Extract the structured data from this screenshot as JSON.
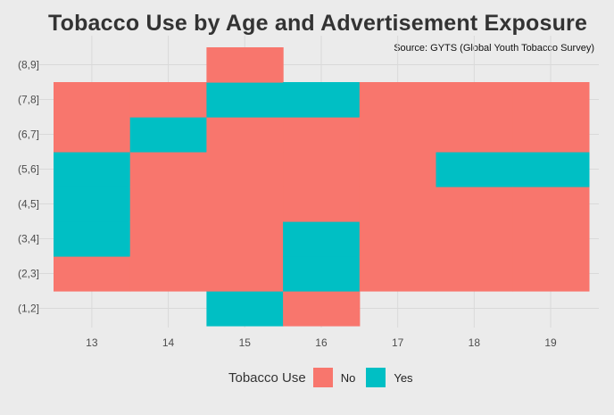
{
  "chart_data": {
    "type": "heatmap",
    "title": "Tobacco Use by Age and Advertisement Exposure",
    "caption": "Source: GYTS (Global Youth Tobacco Survey)",
    "xlabel": "",
    "ylabel": "",
    "x_categories": [
      "13",
      "14",
      "15",
      "16",
      "17",
      "18",
      "19"
    ],
    "y_categories": [
      "(1,2]",
      "(2,3]",
      "(3,4]",
      "(4,5]",
      "(5,6]",
      "(6,7]",
      "(7,8]",
      "(8,9]"
    ],
    "fill_variable": "Tobacco Use",
    "legend": {
      "title": "Tobacco Use",
      "position": "bottom",
      "items": [
        {
          "label": "No",
          "color": "#F8766D"
        },
        {
          "label": "Yes",
          "color": "#00BFC4"
        }
      ]
    },
    "cells": [
      {
        "x": "13",
        "y": "(2,3]",
        "value": "No"
      },
      {
        "x": "13",
        "y": "(3,4]",
        "value": "Yes"
      },
      {
        "x": "13",
        "y": "(4,5]",
        "value": "Yes"
      },
      {
        "x": "13",
        "y": "(5,6]",
        "value": "Yes"
      },
      {
        "x": "13",
        "y": "(6,7]",
        "value": "No"
      },
      {
        "x": "13",
        "y": "(7,8]",
        "value": "No"
      },
      {
        "x": "14",
        "y": "(2,3]",
        "value": "No"
      },
      {
        "x": "14",
        "y": "(3,4]",
        "value": "No"
      },
      {
        "x": "14",
        "y": "(4,5]",
        "value": "No"
      },
      {
        "x": "14",
        "y": "(5,6]",
        "value": "No"
      },
      {
        "x": "14",
        "y": "(6,7]",
        "value": "Yes"
      },
      {
        "x": "14",
        "y": "(7,8]",
        "value": "No"
      },
      {
        "x": "15",
        "y": "(1,2]",
        "value": "Yes"
      },
      {
        "x": "15",
        "y": "(2,3]",
        "value": "No"
      },
      {
        "x": "15",
        "y": "(3,4]",
        "value": "No"
      },
      {
        "x": "15",
        "y": "(4,5]",
        "value": "No"
      },
      {
        "x": "15",
        "y": "(5,6]",
        "value": "No"
      },
      {
        "x": "15",
        "y": "(6,7]",
        "value": "No"
      },
      {
        "x": "15",
        "y": "(7,8]",
        "value": "Yes"
      },
      {
        "x": "15",
        "y": "(8,9]",
        "value": "No"
      },
      {
        "x": "16",
        "y": "(1,2]",
        "value": "No"
      },
      {
        "x": "16",
        "y": "(2,3]",
        "value": "Yes"
      },
      {
        "x": "16",
        "y": "(3,4]",
        "value": "Yes"
      },
      {
        "x": "16",
        "y": "(4,5]",
        "value": "No"
      },
      {
        "x": "16",
        "y": "(5,6]",
        "value": "No"
      },
      {
        "x": "16",
        "y": "(6,7]",
        "value": "No"
      },
      {
        "x": "16",
        "y": "(7,8]",
        "value": "Yes"
      },
      {
        "x": "17",
        "y": "(2,3]",
        "value": "No"
      },
      {
        "x": "17",
        "y": "(3,4]",
        "value": "No"
      },
      {
        "x": "17",
        "y": "(4,5]",
        "value": "No"
      },
      {
        "x": "17",
        "y": "(5,6]",
        "value": "No"
      },
      {
        "x": "17",
        "y": "(6,7]",
        "value": "No"
      },
      {
        "x": "17",
        "y": "(7,8]",
        "value": "No"
      },
      {
        "x": "18",
        "y": "(2,3]",
        "value": "No"
      },
      {
        "x": "18",
        "y": "(3,4]",
        "value": "No"
      },
      {
        "x": "18",
        "y": "(4,5]",
        "value": "No"
      },
      {
        "x": "18",
        "y": "(5,6]",
        "value": "Yes"
      },
      {
        "x": "18",
        "y": "(6,7]",
        "value": "No"
      },
      {
        "x": "18",
        "y": "(7,8]",
        "value": "No"
      },
      {
        "x": "19",
        "y": "(2,3]",
        "value": "No"
      },
      {
        "x": "19",
        "y": "(3,4]",
        "value": "No"
      },
      {
        "x": "19",
        "y": "(4,5]",
        "value": "No"
      },
      {
        "x": "19",
        "y": "(5,6]",
        "value": "Yes"
      },
      {
        "x": "19",
        "y": "(6,7]",
        "value": "No"
      },
      {
        "x": "19",
        "y": "(7,8]",
        "value": "No"
      }
    ],
    "grid": true
  },
  "colors": {
    "background": "#ebebeb",
    "gridline": "#d9d9d9"
  }
}
